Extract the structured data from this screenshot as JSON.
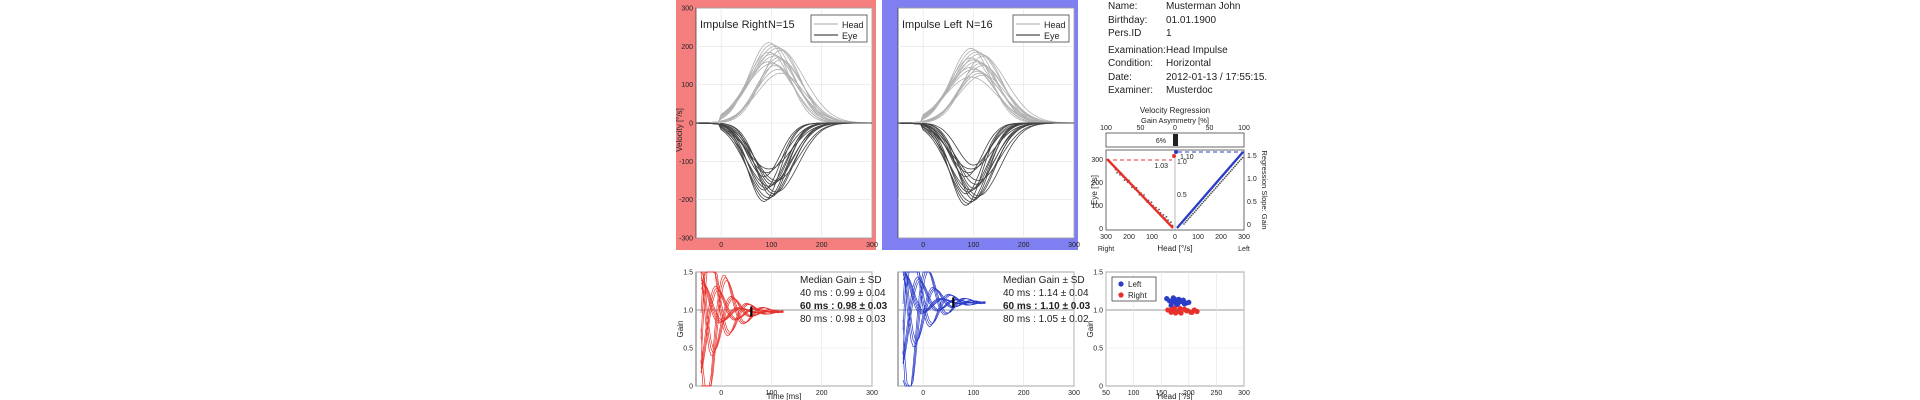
{
  "patient": {
    "name_label": "Name:",
    "name": "Musterman John",
    "birthday_label": "Birthday:",
    "birthday": "01.01.1900",
    "persid_label": "Pers.ID",
    "persid": "1",
    "examination_label": "Examination:",
    "examination": "Head Impulse",
    "condition_label": "Condition:",
    "condition": "Horizontal",
    "date_label": "Date:",
    "date": "2012-01-13 / 17:55:15.",
    "examiner_label": "Examiner:",
    "examiner": "Musterdoc"
  },
  "colors": {
    "right": "#e8302a",
    "left": "#2a3cc8",
    "right_bg": "#f57f7f",
    "left_bg": "#7f7ff2"
  },
  "chart_data": [
    {
      "id": "impulse-right",
      "type": "line",
      "title": "Impulse Right",
      "count": "N=15",
      "ylabel": "Velocity [°/s]",
      "xlim": [
        -50,
        300
      ],
      "ylim": [
        -300,
        300
      ],
      "xticks": [
        "0",
        "100",
        "200",
        "300"
      ],
      "xtick_values": [
        0,
        100,
        200,
        300
      ],
      "yticks": [
        "300",
        "200",
        "100",
        "0",
        "-100",
        "-200",
        "-300"
      ],
      "ytick_values": [
        300,
        200,
        100,
        0,
        -100,
        -200,
        -300
      ],
      "legend": [
        "Head",
        "Eye"
      ],
      "head_peaks": [
        210,
        205,
        200,
        195,
        190,
        185,
        180,
        175,
        170,
        165,
        160,
        155,
        150,
        140,
        130
      ],
      "eye_peaks": [
        -205,
        -200,
        -195,
        -190,
        -185,
        -180,
        -175,
        -170,
        -165,
        -160,
        -155,
        -150,
        -140,
        -130,
        -120
      ]
    },
    {
      "id": "impulse-left",
      "type": "line",
      "title": "Impulse Left",
      "count": "N=16",
      "xlim": [
        -50,
        300
      ],
      "ylim": [
        -300,
        300
      ],
      "xticks": [
        "0",
        "100",
        "200",
        "300"
      ],
      "xtick_values": [
        0,
        100,
        200,
        300
      ],
      "yticks": [],
      "ytick_values": [
        300,
        200,
        100,
        0,
        -100,
        -200,
        -300
      ],
      "legend": [
        "Head",
        "Eye"
      ],
      "head_peaks": [
        195,
        190,
        185,
        180,
        175,
        170,
        165,
        160,
        155,
        150,
        145,
        140,
        135,
        130,
        125,
        120
      ],
      "eye_peaks": [
        -215,
        -210,
        -205,
        -200,
        -195,
        -190,
        -185,
        -180,
        -175,
        -170,
        -160,
        -150,
        -140,
        -130,
        -120,
        -110
      ]
    },
    {
      "id": "velocity-regression",
      "type": "scatter",
      "title": "Velocity Regression",
      "top_axis_label": "Gain Asymmetry [%]",
      "top_ticks": [
        "100",
        "50",
        "0",
        "50",
        "100"
      ],
      "xlabel": "Head [°/s]",
      "ylabel": "Eye [°/s]",
      "y2label": "Regression Slope: Gain",
      "xticks": [
        "300",
        "200",
        "100",
        "0",
        "100",
        "200",
        "300"
      ],
      "yticks": [
        "300",
        "200",
        "100",
        "0"
      ],
      "y2ticks": [
        "1.5",
        "1.0",
        "0.5",
        "0"
      ],
      "side_right": "Right",
      "side_left": "Left",
      "asymmetry": "6%",
      "gain_right": "1.03",
      "gain_left": "1.10",
      "gain_center_top": "1.5",
      "gain_center_mid": "1.0",
      "gain_center_low": "0.5"
    },
    {
      "id": "gain-right",
      "type": "line",
      "ylabel": "Gain",
      "xlabel": "Time [ms]",
      "xlim": [
        -50,
        300
      ],
      "ylim": [
        0,
        1.5
      ],
      "xticks": [
        "0",
        "100",
        "200",
        "300"
      ],
      "yticks": [
        "1.5",
        "1.0",
        "0.5",
        "0"
      ],
      "stats": {
        "title": "Median Gain ± SD",
        "rows": [
          "40 ms :  0.99 ± 0.04",
          "60 ms :  0.98 ± 0.03",
          "80 ms :  0.98 ± 0.03"
        ]
      },
      "marker_x": 60,
      "marker_y": 0.98
    },
    {
      "id": "gain-left",
      "type": "line",
      "xlim": [
        -50,
        300
      ],
      "ylim": [
        0,
        1.5
      ],
      "xticks": [
        "0",
        "100",
        "200",
        "300"
      ],
      "yticks": [
        "1.5",
        "1.0",
        "0.5",
        "0"
      ],
      "stats": {
        "title": "Median Gain ± SD",
        "rows": [
          "40 ms :  1.14 ± 0.04",
          "60 ms :  1.10 ± 0.03",
          "80 ms :  1.05 ± 0.02"
        ]
      },
      "marker_x": 60,
      "marker_y": 1.1
    },
    {
      "id": "gain-scatter",
      "type": "scatter",
      "ylabel": "Gain",
      "xlabel": "Head [°/s]",
      "xlim": [
        50,
        300
      ],
      "ylim": [
        0,
        1.5
      ],
      "xticks": [
        "50",
        "100",
        "150",
        "200",
        "250",
        "300"
      ],
      "xtick_values": [
        50,
        100,
        150,
        200,
        250,
        300
      ],
      "yticks": [
        "1.5",
        "1.0",
        "0.5",
        "0"
      ],
      "legend": [
        "Left",
        "Right"
      ],
      "series": [
        {
          "name": "Left",
          "x": [
            160,
            165,
            170,
            175,
            180,
            185,
            190,
            195,
            200,
            172,
            178,
            188,
            168,
            182,
            192,
            176
          ],
          "y": [
            1.15,
            1.12,
            1.1,
            1.14,
            1.08,
            1.11,
            1.13,
            1.09,
            1.1,
            1.16,
            1.07,
            1.12,
            1.06,
            1.14,
            1.08,
            1.11
          ]
        },
        {
          "name": "Right",
          "x": [
            162,
            168,
            174,
            180,
            186,
            192,
            198,
            204,
            210,
            215,
            176,
            184,
            196,
            206,
            170
          ],
          "y": [
            1.0,
            0.97,
            1.02,
            0.98,
            0.96,
            1.01,
            0.99,
            0.97,
            1.0,
            0.98,
            0.96,
            1.02,
            0.99,
            0.97,
            1.01
          ]
        }
      ]
    }
  ]
}
